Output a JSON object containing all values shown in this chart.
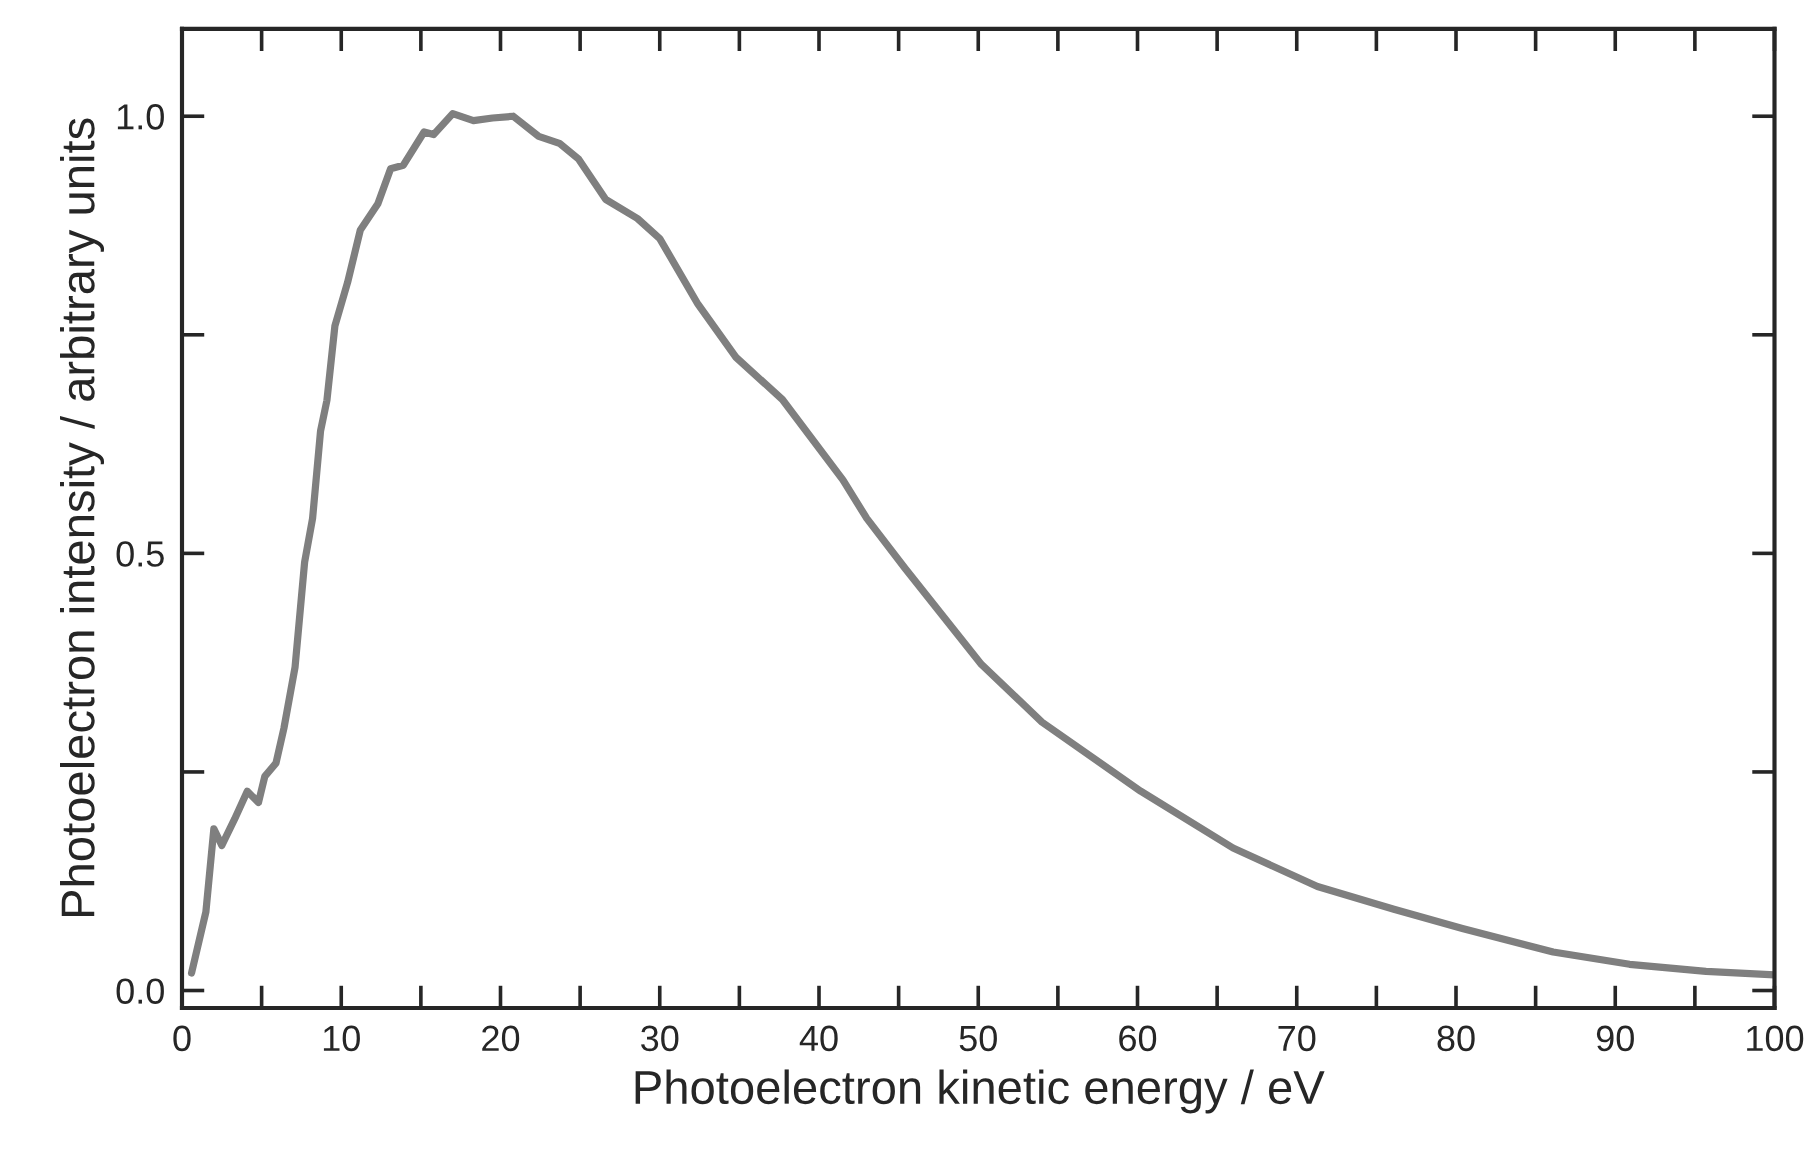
{
  "chart_data": {
    "type": "line",
    "xlabel": "Photoelectron kinetic energy / eV",
    "ylabel": "Photoelectron intensity / arbitrary units",
    "xlim": [
      0,
      100
    ],
    "ylim": [
      -0.02,
      1.1
    ],
    "xticks": [
      0,
      {
        "value": 5,
        "label": null
      },
      10,
      {
        "value": 15,
        "label": null
      },
      20,
      {
        "value": 25,
        "label": null
      },
      30,
      {
        "value": 35,
        "label": null
      },
      40,
      {
        "value": 45,
        "label": null
      },
      50,
      {
        "value": 55,
        "label": null
      },
      60,
      {
        "value": 65,
        "label": null
      },
      70,
      {
        "value": 75,
        "label": null
      },
      80,
      {
        "value": 85,
        "label": null
      },
      90,
      {
        "value": 95,
        "label": null
      },
      100
    ],
    "yticks": [
      {
        "value": 0,
        "label": "0.0"
      },
      {
        "value": 0.25,
        "label": null
      },
      {
        "value": 0.5,
        "label": "0.5"
      },
      {
        "value": 0.75,
        "label": null
      },
      {
        "value": 1.0,
        "label": "1.0"
      }
    ],
    "grid": false,
    "marker": "none",
    "line_style": "solid",
    "x": [
      0.6,
      1.5,
      2.0,
      2.5,
      3.3,
      4.1,
      4.8,
      5.2,
      5.9,
      6.4,
      7.1,
      7.7,
      8.2,
      8.7,
      9.1,
      9.6,
      10.4,
      11.2,
      12.3,
      13.1,
      13.9,
      15.2,
      15.8,
      17.0,
      18.3,
      19.5,
      20.8,
      22.4,
      23.7,
      24.9,
      26.6,
      28.6,
      30.0,
      32.4,
      34.8,
      37.7,
      41.5,
      43.0,
      45.4,
      50.2,
      54.0,
      60.2,
      66.0,
      71.3,
      76.1,
      80.4,
      86.1,
      90.9,
      95.7,
      100
    ],
    "series": [
      {
        "color": "#7f7f7f",
        "values": [
          0.02,
          0.09,
          0.185,
          0.166,
          0.196,
          0.228,
          0.215,
          0.245,
          0.26,
          0.3,
          0.37,
          0.49,
          0.54,
          0.64,
          0.675,
          0.76,
          0.81,
          0.87,
          0.9,
          0.94,
          0.944,
          0.982,
          0.979,
          1.003,
          0.995,
          0.998,
          1.0,
          0.977,
          0.969,
          0.951,
          0.905,
          0.883,
          0.86,
          0.785,
          0.724,
          0.676,
          0.584,
          0.54,
          0.483,
          0.373,
          0.307,
          0.228,
          0.163,
          0.119,
          0.093,
          0.071,
          0.044,
          0.03,
          0.022,
          0.018
        ]
      }
    ]
  }
}
